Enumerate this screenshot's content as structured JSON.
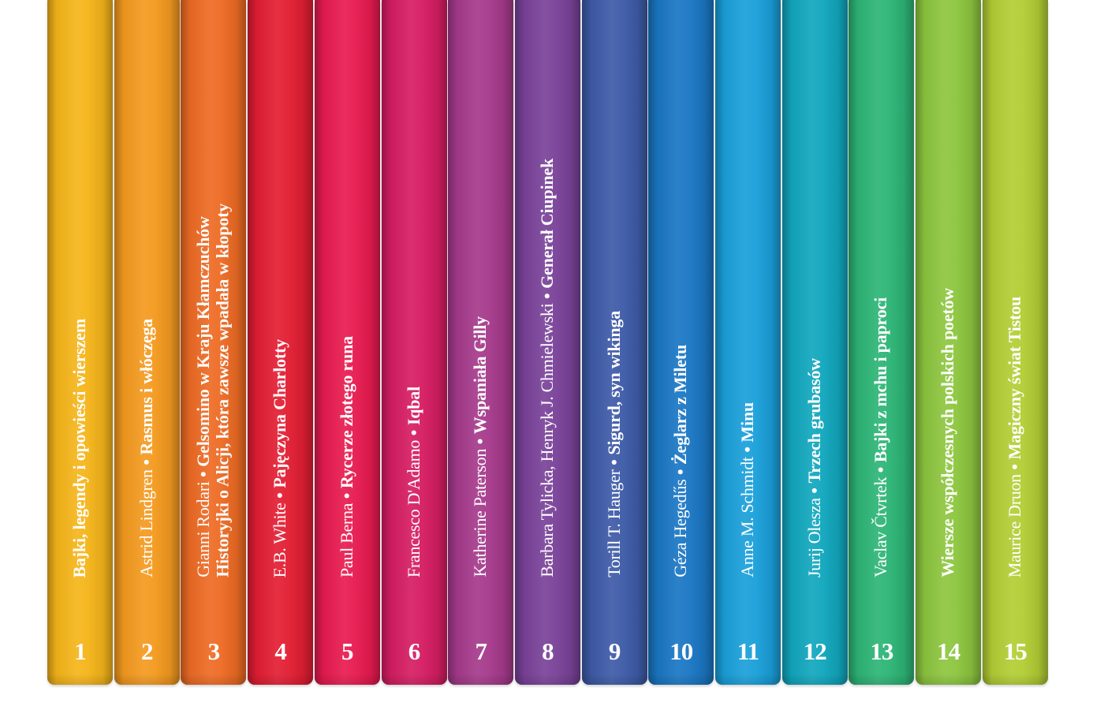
{
  "books": [
    {
      "number": "1",
      "author": "",
      "title": "Bajki, legendy i opowieści wierszem",
      "color": "#F5B51A"
    },
    {
      "number": "2",
      "author": "Astrid Lindgren",
      "title": "Rasmus i włóczęga",
      "color": "#F49A1F"
    },
    {
      "number": "3",
      "author": "Gianni Rodari",
      "title": "Gelsomino w Kraju Kłamczuchów",
      "title2": "Historyjki o Alicji, która zawsze wpadała w kłopoty",
      "color": "#EE6B24"
    },
    {
      "number": "4",
      "author": "E.B. White",
      "title": "Pajęczyna Charlotty",
      "color": "#E31E33"
    },
    {
      "number": "5",
      "author": "Paul Berna",
      "title": "Rycerze złotego runa",
      "color": "#E81B50"
    },
    {
      "number": "6",
      "author": "Francesco D'Adamo",
      "title": "Iqbal",
      "color": "#D61D63"
    },
    {
      "number": "7",
      "author": "Katherine Paterson",
      "title": "Wspaniała Gilly",
      "color": "#A63A8C"
    },
    {
      "number": "8",
      "author": "Barbara Tylicka, Henryk J. Chmielewski",
      "title": "Generał Ciupinek",
      "color": "#7A4299"
    },
    {
      "number": "9",
      "author": "Torill T. Hauger",
      "title": "Sigurd, syn wikinga",
      "color": "#3E5BA8"
    },
    {
      "number": "10",
      "author": "Géza Hegedűs",
      "title": "Żeglarz z Miletu",
      "color": "#1A77C4"
    },
    {
      "number": "11",
      "author": "Anne M. Schmidt",
      "title": "Minu",
      "color": "#1AA0DA"
    },
    {
      "number": "12",
      "author": "Jurij Olesza",
      "title": "Trzech grubasów",
      "color": "#11A7BE"
    },
    {
      "number": "13",
      "author": "Vaclav Čtvrtek",
      "title": "Bajki z mchu i paproci",
      "color": "#2DB576"
    },
    {
      "number": "14",
      "author": "",
      "title": "Wiersze współczesnych polskich poetów",
      "color": "#8DC63F"
    },
    {
      "number": "15",
      "author": "Maurice Druon",
      "title": "Magiczny świat Tistou",
      "color": "#B2CE35"
    }
  ],
  "separator": "•"
}
